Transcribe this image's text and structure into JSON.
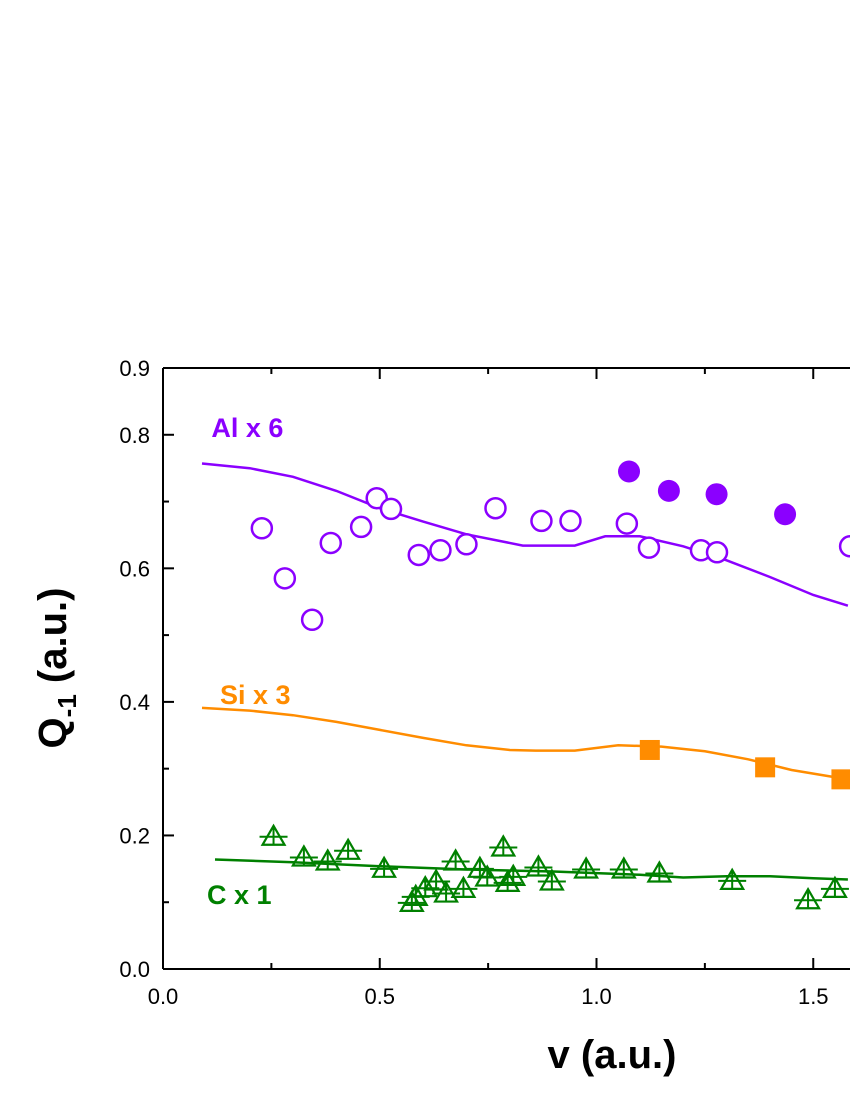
{
  "chart_data": {
    "type": "scatter",
    "xlabel": "v (a.u.)",
    "ylabel_main": "Q",
    "ylabel_sub": "-1",
    "ylabel_units": " (a.u.)",
    "xlim": [
      0.0,
      1.6
    ],
    "ylim": [
      0.0,
      0.9
    ],
    "x_ticks": [
      {
        "value": 0.0,
        "label": "0.0"
      },
      {
        "value": 0.5,
        "label": "0.5"
      },
      {
        "value": 1.0,
        "label": "1.0"
      },
      {
        "value": 1.5,
        "label": "1.5"
      }
    ],
    "y_ticks": [
      {
        "value": 0.0,
        "label": "0.0"
      },
      {
        "value": 0.2,
        "label": "0.2"
      },
      {
        "value": 0.4,
        "label": "0.4"
      },
      {
        "value": 0.6,
        "label": "0.6"
      },
      {
        "value": 0.8,
        "label": "0.8"
      },
      {
        "value": 0.9,
        "label": "0.9"
      }
    ],
    "grid": false,
    "series": [
      {
        "name": "Al x 6",
        "color": "#8B00FF",
        "label_x": 0.1,
        "label_y": 0.8,
        "theory_curve": [
          [
            0.09,
            0.757
          ],
          [
            0.2,
            0.75
          ],
          [
            0.3,
            0.737
          ],
          [
            0.4,
            0.716
          ],
          [
            0.5,
            0.69
          ],
          [
            0.6,
            0.67
          ],
          [
            0.7,
            0.651
          ],
          [
            0.83,
            0.634
          ],
          [
            0.95,
            0.634
          ],
          [
            1.02,
            0.648
          ],
          [
            1.1,
            0.648
          ],
          [
            1.2,
            0.633
          ],
          [
            1.3,
            0.612
          ],
          [
            1.4,
            0.587
          ],
          [
            1.5,
            0.56
          ],
          [
            1.58,
            0.544
          ]
        ],
        "open_points": [
          [
            0.228,
            0.66
          ],
          [
            0.281,
            0.585
          ],
          [
            0.344,
            0.523
          ],
          [
            0.387,
            0.638
          ],
          [
            0.457,
            0.662
          ],
          [
            0.493,
            0.705
          ],
          [
            0.526,
            0.689
          ],
          [
            0.59,
            0.62
          ],
          [
            0.64,
            0.627
          ],
          [
            0.7,
            0.636
          ],
          [
            0.767,
            0.69
          ],
          [
            0.873,
            0.671
          ],
          [
            0.94,
            0.671
          ],
          [
            1.07,
            0.667
          ],
          [
            1.121,
            0.631
          ],
          [
            1.241,
            0.627
          ],
          [
            1.278,
            0.624
          ],
          [
            1.585,
            0.633
          ]
        ],
        "filled_points": [
          [
            1.075,
            0.745
          ],
          [
            1.167,
            0.716
          ],
          [
            1.277,
            0.711
          ],
          [
            1.435,
            0.681
          ]
        ]
      },
      {
        "name": "Si x 3",
        "color": "#FF8C00",
        "label_x": 0.12,
        "label_y": 0.4,
        "theory_curve": [
          [
            0.09,
            0.391
          ],
          [
            0.2,
            0.387
          ],
          [
            0.3,
            0.38
          ],
          [
            0.4,
            0.37
          ],
          [
            0.5,
            0.358
          ],
          [
            0.6,
            0.346
          ],
          [
            0.7,
            0.335
          ],
          [
            0.8,
            0.328
          ],
          [
            0.86,
            0.327
          ],
          [
            0.95,
            0.327
          ],
          [
            1.05,
            0.335
          ],
          [
            1.15,
            0.333
          ],
          [
            1.25,
            0.326
          ],
          [
            1.35,
            0.314
          ],
          [
            1.45,
            0.298
          ],
          [
            1.58,
            0.284
          ]
        ],
        "filled_points": [
          [
            1.123,
            0.328
          ],
          [
            1.389,
            0.302
          ],
          [
            1.565,
            0.284
          ]
        ]
      },
      {
        "name": "C x 1",
        "color": "#008000",
        "label_x": 0.09,
        "label_y": 0.1,
        "theory_curve": [
          [
            0.12,
            0.164
          ],
          [
            0.3,
            0.16
          ],
          [
            0.5,
            0.154
          ],
          [
            0.7,
            0.149
          ],
          [
            0.9,
            0.146
          ],
          [
            1.1,
            0.141
          ],
          [
            1.2,
            0.137
          ],
          [
            1.3,
            0.139
          ],
          [
            1.4,
            0.139
          ],
          [
            1.5,
            0.136
          ],
          [
            1.58,
            0.134
          ]
        ],
        "open_triangles": [
          [
            0.255,
            0.198
          ],
          [
            0.325,
            0.167
          ],
          [
            0.38,
            0.161
          ],
          [
            0.427,
            0.177
          ],
          [
            0.51,
            0.15
          ],
          [
            0.574,
            0.099
          ],
          [
            0.583,
            0.108
          ],
          [
            0.605,
            0.121
          ],
          [
            0.63,
            0.131
          ],
          [
            0.653,
            0.113
          ],
          [
            0.675,
            0.161
          ],
          [
            0.693,
            0.12
          ],
          [
            0.731,
            0.15
          ],
          [
            0.748,
            0.137
          ],
          [
            0.785,
            0.182
          ],
          [
            0.795,
            0.129
          ],
          [
            0.808,
            0.138
          ],
          [
            0.866,
            0.152
          ],
          [
            0.897,
            0.131
          ],
          [
            0.976,
            0.149
          ],
          [
            1.063,
            0.149
          ],
          [
            1.145,
            0.143
          ],
          [
            1.313,
            0.132
          ],
          [
            1.488,
            0.103
          ],
          [
            1.55,
            0.12
          ]
        ]
      }
    ]
  }
}
